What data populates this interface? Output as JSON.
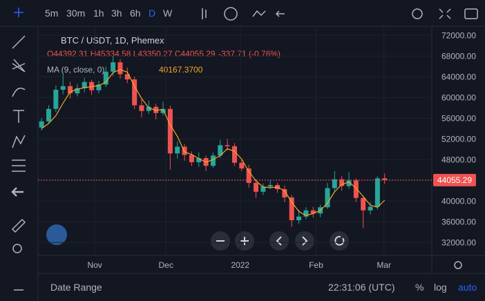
{
  "toolbar": {
    "intervals": [
      "5m",
      "30m",
      "1h",
      "3h",
      "6h",
      "D",
      "W"
    ]
  },
  "header": {
    "symbol": "BTC / USDT, 1D, Phemex",
    "ohlc": "O44392.31 H45334.58 L43350.27 C44055.29",
    "change": "-337.71 (-0.76%)",
    "ma_text": "MA (9, close, 0)",
    "ma_value": "40167.3700"
  },
  "footer": {
    "date_range": "Date Range",
    "time": "22:31:06 (UTC)",
    "percent": "%",
    "log": "log",
    "auto": "auto"
  },
  "chart_data": {
    "type": "candlestick",
    "up_color": "#26a69a",
    "down_color": "#ef5350",
    "candles": [
      [
        54200,
        56000,
        53600,
        55400
      ],
      [
        55400,
        58500,
        55000,
        57800
      ],
      [
        57800,
        62300,
        57200,
        61500
      ],
      [
        61500,
        64500,
        60600,
        62200
      ],
      [
        62200,
        63000,
        59800,
        60800
      ],
      [
        60800,
        62600,
        60200,
        61800
      ],
      [
        61800,
        63800,
        61000,
        63000
      ],
      [
        63000,
        63400,
        60500,
        61400
      ],
      [
        61400,
        63200,
        60800,
        62500
      ],
      [
        62500,
        66000,
        62000,
        65000
      ],
      [
        65000,
        68000,
        64200,
        66800
      ],
      [
        66800,
        67400,
        63600,
        64500
      ],
      [
        64500,
        65800,
        62800,
        63500
      ],
      [
        63500,
        64000,
        57800,
        58500
      ],
      [
        58500,
        59600,
        56200,
        57400
      ],
      [
        57400,
        59400,
        56800,
        58200
      ],
      [
        58200,
        58800,
        55800,
        57000
      ],
      [
        57000,
        59200,
        56500,
        57800
      ],
      [
        57800,
        58400,
        46100,
        49200
      ],
      [
        49200,
        51500,
        48200,
        50500
      ],
      [
        50500,
        51000,
        47800,
        48900
      ],
      [
        48900,
        49600,
        46800,
        47500
      ],
      [
        47500,
        49400,
        46600,
        48300
      ],
      [
        48300,
        48800,
        45800,
        46800
      ],
      [
        46800,
        49400,
        46400,
        48800
      ],
      [
        48800,
        51800,
        48300,
        50800
      ],
      [
        50800,
        52000,
        49800,
        50600
      ],
      [
        50600,
        51200,
        46800,
        47400
      ],
      [
        47400,
        47900,
        45800,
        46300
      ],
      [
        46300,
        47000,
        42600,
        43500
      ],
      [
        43500,
        44200,
        40600,
        41800
      ],
      [
        41800,
        43400,
        41200,
        42800
      ],
      [
        42800,
        44000,
        42300,
        43100
      ],
      [
        43100,
        43500,
        41600,
        42300
      ],
      [
        42300,
        43000,
        39800,
        40700
      ],
      [
        40700,
        41200,
        35000,
        36300
      ],
      [
        36300,
        38300,
        35600,
        37000
      ],
      [
        37000,
        38800,
        36500,
        38200
      ],
      [
        38200,
        38900,
        36800,
        37600
      ],
      [
        37600,
        39300,
        36900,
        38800
      ],
      [
        38800,
        43500,
        38500,
        42500
      ],
      [
        42500,
        45800,
        41800,
        44200
      ],
      [
        44200,
        44800,
        42000,
        42900
      ],
      [
        42900,
        45600,
        42400,
        44000
      ],
      [
        44000,
        44400,
        39800,
        40600
      ],
      [
        40600,
        41000,
        34800,
        38200
      ],
      [
        38200,
        39800,
        37400,
        38900
      ],
      [
        38900,
        44800,
        38400,
        44393
      ],
      [
        44392.31,
        45334.58,
        43350.27,
        44055.29
      ]
    ],
    "ma": {
      "color": "#f5a623",
      "values": [
        54000,
        55000,
        56500,
        58900,
        61100,
        61600,
        61900,
        62100,
        62300,
        63000,
        64800,
        65400,
        64900,
        62200,
        59800,
        58000,
        57500,
        57700,
        54700,
        52500,
        49500,
        49000,
        48200,
        47500,
        48000,
        48800,
        50100,
        49600,
        48100,
        45700,
        43900,
        42700,
        42600,
        42700,
        42000,
        39800,
        38000,
        37200,
        37600,
        38200,
        39600,
        41800,
        43200,
        43700,
        42500,
        40900,
        39200,
        38800,
        40167.37
      ]
    },
    "ylim": [
      29500,
      73500
    ],
    "yticks": [
      {
        "value": 32000,
        "label": "32000.00"
      },
      {
        "value": 36000,
        "label": "36000.00"
      },
      {
        "value": 40000,
        "label": "40000.00"
      },
      {
        "value": 44000,
        "label": "44000.00"
      },
      {
        "value": 48000,
        "label": "48000.00"
      },
      {
        "value": 52000,
        "label": "52000.00"
      },
      {
        "value": 56000,
        "label": "56000.00"
      },
      {
        "value": 60000,
        "label": "60000.00"
      },
      {
        "value": 64000,
        "label": "64000.00"
      },
      {
        "value": 68000,
        "label": "68000.00"
      },
      {
        "value": 72000,
        "label": "72000.00"
      }
    ],
    "xlim": [
      -0.5,
      54.6
    ],
    "xticks": [
      {
        "value": 7.44,
        "label": "Nov"
      },
      {
        "value": 17.4,
        "label": "Dec"
      },
      {
        "value": 27.8,
        "label": "2022"
      },
      {
        "value": 38.4,
        "label": "Feb"
      },
      {
        "value": 47.9,
        "label": "Mar"
      }
    ]
  }
}
